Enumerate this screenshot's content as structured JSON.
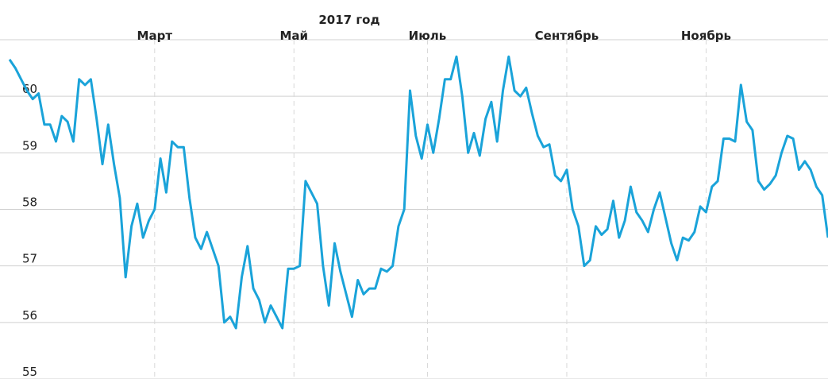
{
  "chart_data": {
    "type": "line",
    "title": "2017 год",
    "categories": [
      null,
      null,
      null,
      null,
      null,
      null,
      null,
      null,
      null,
      null,
      null,
      null,
      null,
      null,
      null,
      null,
      null,
      null,
      null,
      null,
      null,
      null,
      null,
      null,
      null,
      "Март",
      null,
      null,
      null,
      null,
      null,
      null,
      null,
      null,
      null,
      null,
      null,
      null,
      null,
      null,
      null,
      null,
      null,
      null,
      null,
      null,
      null,
      null,
      null,
      "Май",
      null,
      null,
      null,
      null,
      null,
      null,
      null,
      null,
      null,
      null,
      null,
      null,
      null,
      null,
      null,
      null,
      null,
      null,
      null,
      null,
      null,
      null,
      "Июль",
      null,
      null,
      null,
      null,
      null,
      null,
      null,
      null,
      null,
      null,
      null,
      null,
      null,
      null,
      null,
      null,
      null,
      null,
      null,
      null,
      null,
      null,
      null,
      "Сентябрь",
      null,
      null,
      null,
      null,
      null,
      null,
      null,
      null,
      null,
      null,
      null,
      null,
      null,
      null,
      null,
      null,
      null,
      null,
      null,
      null,
      null,
      null,
      null,
      "Ноябрь",
      null,
      null,
      null,
      null,
      null,
      null,
      null,
      null,
      null,
      null,
      null,
      null,
      null,
      null,
      null,
      null,
      null,
      null,
      null,
      null,
      null
    ],
    "values": [
      60.65,
      60.5,
      60.3,
      60.1,
      59.95,
      60.05,
      59.5,
      59.5,
      59.2,
      59.65,
      59.55,
      59.2,
      60.3,
      60.2,
      60.3,
      59.6,
      58.8,
      59.5,
      58.8,
      58.2,
      56.8,
      57.7,
      58.1,
      57.5,
      57.8,
      58.0,
      58.9,
      58.3,
      59.2,
      59.1,
      59.1,
      58.2,
      57.5,
      57.3,
      57.6,
      57.3,
      57.0,
      56.0,
      56.1,
      55.9,
      56.8,
      57.35,
      56.6,
      56.4,
      56.0,
      56.3,
      56.1,
      55.9,
      56.95,
      56.95,
      57.0,
      58.5,
      58.3,
      58.1,
      57.0,
      56.3,
      57.4,
      56.9,
      56.5,
      56.1,
      56.75,
      56.5,
      56.6,
      56.6,
      56.95,
      56.9,
      57.0,
      57.7,
      58.0,
      60.1,
      59.3,
      58.9,
      59.5,
      59.0,
      59.6,
      60.3,
      60.3,
      60.7,
      60.0,
      59.0,
      59.35,
      58.95,
      59.6,
      59.9,
      59.2,
      60.1,
      60.7,
      60.1,
      60.0,
      60.15,
      59.7,
      59.3,
      59.1,
      59.15,
      58.6,
      58.5,
      58.7,
      58.0,
      57.7,
      57.0,
      57.1,
      57.7,
      57.55,
      57.65,
      58.15,
      57.5,
      57.8,
      58.4,
      57.95,
      57.8,
      57.6,
      58.0,
      58.3,
      57.85,
      57.4,
      57.1,
      57.5,
      57.45,
      57.6,
      58.05,
      57.95,
      58.4,
      58.5,
      59.25,
      59.25,
      59.2,
      60.2,
      59.55,
      59.4,
      58.5,
      58.35,
      58.45,
      58.6,
      59.0,
      59.3,
      59.25,
      58.7,
      58.85,
      58.7,
      58.4,
      58.25,
      57.5
    ],
    "color": "#1aa3d9",
    "ylim": [
      55,
      61
    ],
    "yticks": [
      55,
      56,
      57,
      58,
      59,
      60
    ],
    "grid": true
  }
}
